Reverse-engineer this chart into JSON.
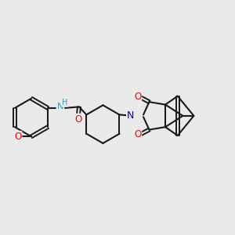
{
  "background_color": "#eaeaea",
  "bond_color": "#1a1a1a",
  "atom_colors": {
    "O": "#ff0000",
    "N": "#0000cc",
    "NH": "#3399aa",
    "C": "#1a1a1a"
  },
  "figsize": [
    3.0,
    3.0
  ],
  "dpi": 100
}
